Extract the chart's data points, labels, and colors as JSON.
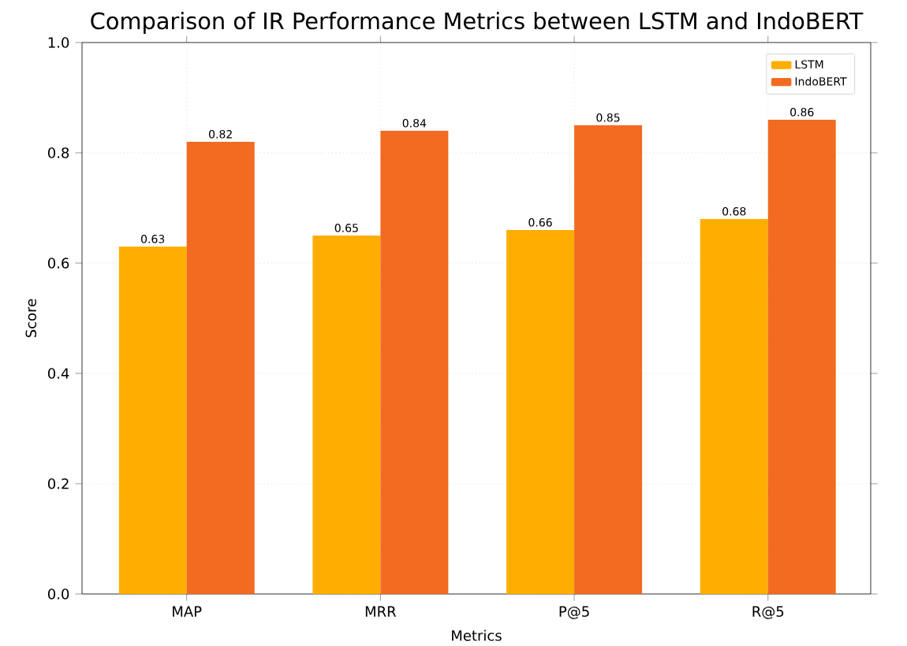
{
  "chart_data": {
    "type": "bar",
    "title": "Comparison of IR Performance Metrics between LSTM and IndoBERT",
    "xlabel": "Metrics",
    "ylabel": "Score",
    "categories": [
      "MAP",
      "MRR",
      "P@5",
      "R@5"
    ],
    "series": [
      {
        "name": "LSTM",
        "color": "#ffad00",
        "values": [
          0.63,
          0.65,
          0.66,
          0.68
        ]
      },
      {
        "name": "IndoBERT",
        "color": "#f26b21",
        "values": [
          0.82,
          0.84,
          0.85,
          0.86
        ]
      }
    ],
    "ylim": [
      0,
      1
    ],
    "yticks": [
      {
        "value": 0,
        "label": "0.0"
      },
      0.2,
      0.4,
      0.6,
      0.8,
      {
        "value": 1,
        "label": "1.0"
      }
    ],
    "data_labels": true,
    "grid": true,
    "legend": "top right"
  }
}
